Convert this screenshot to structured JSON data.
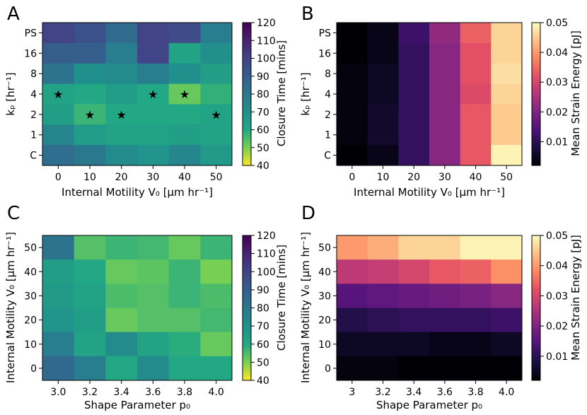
{
  "figure": {
    "panel_letters": [
      "A",
      "B",
      "C",
      "D"
    ]
  },
  "colorbars": {
    "closure_time": {
      "label": "Closure Time [mins]",
      "colormap": "viridis_r",
      "range": [
        40,
        120
      ],
      "ticks": [
        "40",
        "50",
        "60",
        "70",
        "80",
        "90",
        "100",
        "110",
        "120"
      ]
    },
    "strain_energy": {
      "label": "Mean Strain Energy [pJ]",
      "colormap": "magma",
      "range": [
        0.002,
        0.05
      ],
      "ticks": [
        "0.01",
        "0.02",
        "0.03",
        "0.04",
        "0.05"
      ],
      "tick_values": [
        0.01,
        0.02,
        0.03,
        0.04,
        0.05
      ]
    }
  },
  "chart_data": [
    {
      "panel": "A",
      "type": "heatmap",
      "colormap": "viridis_r",
      "vrange": [
        40,
        120
      ],
      "xlabel": "Internal Motility V₀ [μm hr⁻¹]",
      "ylabel": "kₚ [hr⁻¹]",
      "x_categories": [
        "0",
        "10",
        "20",
        "30",
        "40",
        "50"
      ],
      "y_categories": [
        "PS",
        "16",
        "8",
        "4",
        "2",
        "1",
        "C"
      ],
      "values": [
        [
          100,
          95,
          85,
          100,
          97,
          78
        ],
        [
          90,
          90,
          78,
          100,
          62,
          70
        ],
        [
          82,
          70,
          72,
          78,
          70,
          64
        ],
        [
          62,
          60,
          65,
          60,
          52,
          58
        ],
        [
          64,
          57,
          60,
          60,
          60,
          62
        ],
        [
          75,
          65,
          62,
          62,
          64,
          62
        ],
        [
          84,
          80,
          72,
          68,
          74,
          66
        ]
      ],
      "markers": [
        {
          "x": "0",
          "y": "4",
          "symbol": "★"
        },
        {
          "x": "30",
          "y": "4",
          "symbol": "★"
        },
        {
          "x": "40",
          "y": "4",
          "symbol": "★"
        },
        {
          "x": "10",
          "y": "2",
          "symbol": "★"
        },
        {
          "x": "20",
          "y": "2",
          "symbol": "★"
        },
        {
          "x": "50",
          "y": "2",
          "symbol": "★"
        }
      ]
    },
    {
      "panel": "B",
      "type": "heatmap",
      "colormap": "magma",
      "vrange": [
        0.002,
        0.05
      ],
      "xlabel": "Internal Motility V₀ [μm hr⁻¹]",
      "ylabel": "kₚ [hr⁻¹]",
      "x_categories": [
        "0",
        "10",
        "20",
        "30",
        "40",
        "50"
      ],
      "y_categories": [
        "PS",
        "16",
        "8",
        "4",
        "2",
        "1",
        "C"
      ],
      "values": [
        [
          0.002,
          0.004,
          0.012,
          0.022,
          0.034,
          0.046
        ],
        [
          0.002,
          0.004,
          0.011,
          0.021,
          0.032,
          0.046
        ],
        [
          0.003,
          0.005,
          0.011,
          0.021,
          0.032,
          0.047
        ],
        [
          0.003,
          0.005,
          0.011,
          0.021,
          0.031,
          0.046
        ],
        [
          0.003,
          0.006,
          0.011,
          0.021,
          0.033,
          0.045
        ],
        [
          0.003,
          0.006,
          0.011,
          0.021,
          0.033,
          0.045
        ],
        [
          0.002,
          0.004,
          0.011,
          0.021,
          0.033,
          0.049
        ]
      ]
    },
    {
      "panel": "C",
      "type": "heatmap",
      "colormap": "viridis_r",
      "vrange": [
        40,
        120
      ],
      "xlabel": "Shape Parameter p₀",
      "ylabel": "Internal Motility V₀ [μm hr⁻¹]",
      "x_categories": [
        "3.0",
        "3.2",
        "3.4",
        "3.6",
        "3.8",
        "4.0"
      ],
      "y_categories": [
        "50",
        "40",
        "30",
        "20",
        "10",
        "0"
      ],
      "values": [
        [
          82,
          54,
          57,
          56,
          52,
          57
        ],
        [
          64,
          60,
          52,
          53,
          57,
          50
        ],
        [
          66,
          62,
          55,
          54,
          57,
          55
        ],
        [
          68,
          64,
          52,
          54,
          54,
          56
        ],
        [
          78,
          62,
          72,
          62,
          59,
          52
        ],
        [
          86,
          78,
          60,
          72,
          60,
          60
        ]
      ]
    },
    {
      "panel": "D",
      "type": "heatmap",
      "colormap": "magma",
      "vrange": [
        0.002,
        0.05
      ],
      "xlabel": "Shape Parameter p₀",
      "ylabel": "Internal Motility V₀ [μm hr⁻¹]",
      "x_categories": [
        "3",
        "3.2",
        "3.4",
        "3.6",
        "3.8",
        "4.0"
      ],
      "y_categories": [
        "50",
        "40",
        "30",
        "20",
        "10",
        "0"
      ],
      "values": [
        [
          0.04,
          0.042,
          0.046,
          0.046,
          0.049,
          0.049
        ],
        [
          0.027,
          0.028,
          0.03,
          0.033,
          0.034,
          0.039
        ],
        [
          0.015,
          0.016,
          0.017,
          0.018,
          0.019,
          0.021
        ],
        [
          0.009,
          0.01,
          0.011,
          0.011,
          0.011,
          0.012
        ],
        [
          0.005,
          0.005,
          0.005,
          0.004,
          0.004,
          0.005
        ],
        [
          0.003,
          0.003,
          0.002,
          0.002,
          0.002,
          0.002
        ]
      ]
    }
  ]
}
